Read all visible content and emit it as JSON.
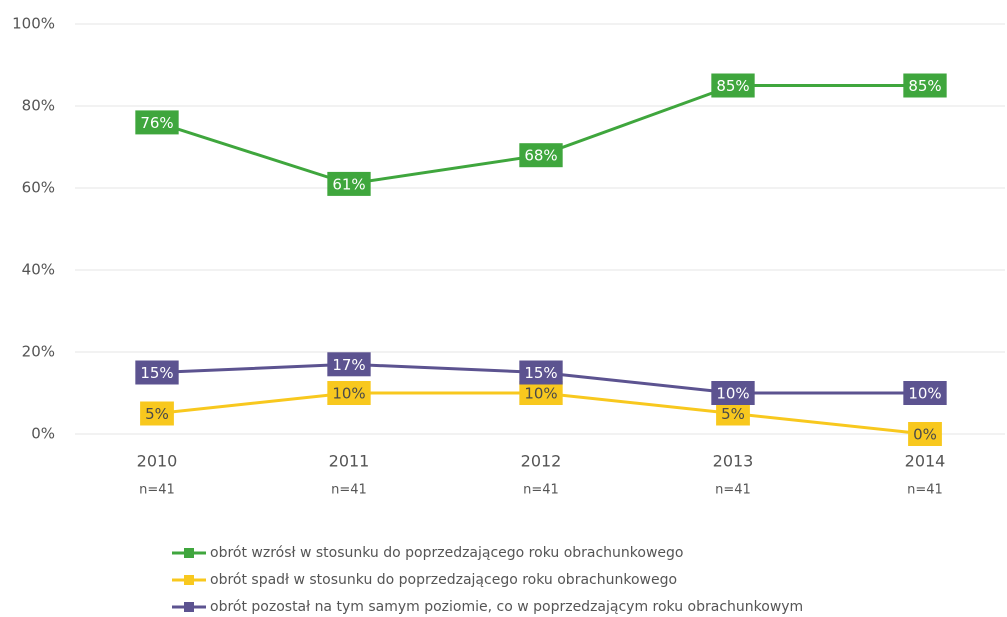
{
  "chart_data": {
    "type": "line",
    "categories": [
      "2010",
      "2011",
      "2012",
      "2013",
      "2014"
    ],
    "category_notes": [
      "n=41",
      "n=41",
      "n=41",
      "n=41",
      "n=41"
    ],
    "series": [
      {
        "name": "obrót wzrósł w stosunku do poprzedzającego roku obrachunkowego",
        "color": "#3fa63d",
        "label_text_color": "#ffffff",
        "values": [
          76,
          61,
          68,
          85,
          85
        ],
        "value_labels": [
          "76%",
          "61%",
          "68%",
          "85%",
          "85%"
        ]
      },
      {
        "name": "obrót spadł w stosunku do poprzedzającego roku obrachunkowego",
        "color": "#f8c81e",
        "label_text_color": "#4a4a4a",
        "values": [
          5,
          10,
          10,
          5,
          0
        ],
        "value_labels": [
          "5%",
          "10%",
          "10%",
          "5%",
          "0%"
        ]
      },
      {
        "name": "obrót pozostał na tym samym poziomie, co w poprzedzającym roku obrachunkowym",
        "color": "#5c5390",
        "label_text_color": "#ffffff",
        "values": [
          15,
          17,
          15,
          10,
          10
        ],
        "value_labels": [
          "15%",
          "17%",
          "15%",
          "10%",
          "10%"
        ]
      }
    ],
    "ylim": [
      0,
      100
    ],
    "yticks": [
      {
        "value": 0,
        "label": "0%"
      },
      {
        "value": 20,
        "label": "20%"
      },
      {
        "value": 40,
        "label": "40%"
      },
      {
        "value": 60,
        "label": "60%"
      },
      {
        "value": 80,
        "label": "80%"
      },
      {
        "value": 100,
        "label": "100%"
      }
    ],
    "grid": true,
    "legend": "bottom"
  }
}
